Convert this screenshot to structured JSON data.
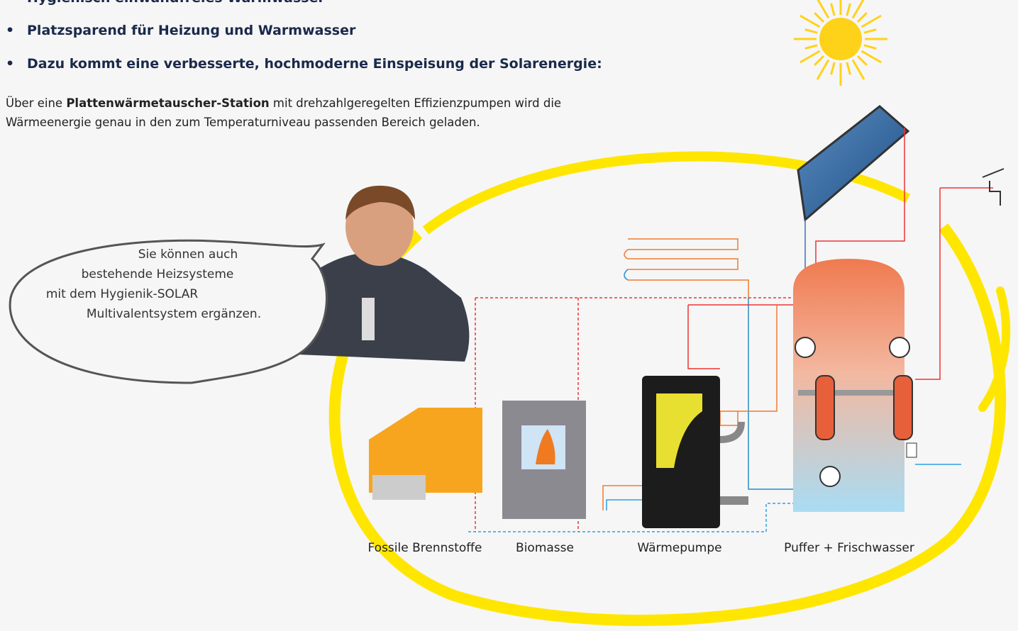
{
  "bullets": [
    "Hygienisch einwandfreies Warmwasser",
    "Platzsparend für Heizung und Warmwasser",
    "Dazu kommt eine verbesserte, hochmoderne Einspeisung der Solarenergie:"
  ],
  "paragraph": {
    "lead": "Über eine",
    "bold": "Plattenwärmetauscher-Station",
    "rest": "mit drehzahlgeregelten Effizienzpumpen wird die",
    "line2": "Wärmeenergie genau in den zum Temperaturniveau passenden Bereich geladen."
  },
  "bubble": [
    "Sie können auch",
    "bestehende Heizsysteme",
    "mit dem Hygienik-SOLAR",
    "Multivalentsystem ergänzen."
  ],
  "labels": [
    "Fossile Brennstoffe",
    "Biomasse",
    "Wärmepumpe",
    "Puffer + Frischwasser"
  ]
}
